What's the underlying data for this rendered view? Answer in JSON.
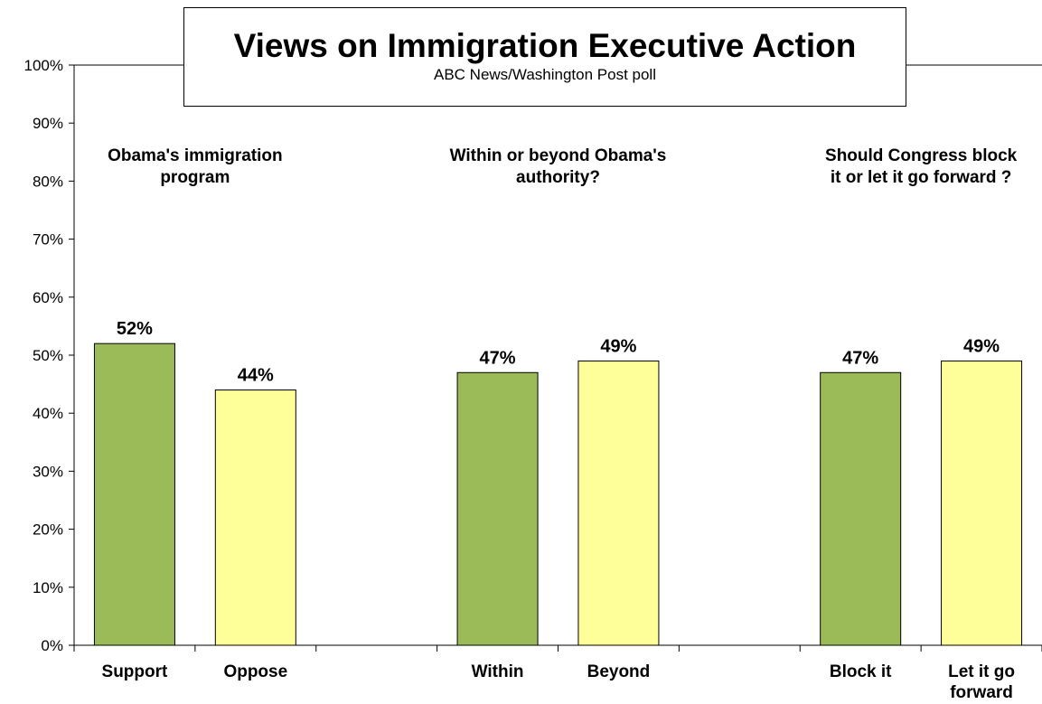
{
  "chart_data": {
    "type": "bar",
    "title": "Views on Immigration Executive Action",
    "subtitle": "ABC News/Washington  Post poll",
    "ylim": [
      0,
      100
    ],
    "yticks": [
      "0%",
      "10%",
      "20%",
      "30%",
      "40%",
      "50%",
      "60%",
      "70%",
      "80%",
      "90%",
      "100%"
    ],
    "grid": false,
    "colors": {
      "green": "#9bbb59",
      "yellow": "#ffff99"
    },
    "groups": [
      {
        "label_lines": [
          "Obama's immigration",
          "program"
        ]
      },
      {
        "label_lines": [
          "Within or beyond Obama's",
          "authority?"
        ]
      },
      {
        "label_lines": [
          "Should Congress block",
          "it or let it go forward ?"
        ]
      }
    ],
    "bars": [
      {
        "category_lines": [
          "Support"
        ],
        "value": 52,
        "label": "52%",
        "color": "green"
      },
      {
        "category_lines": [
          "Oppose"
        ],
        "value": 44,
        "label": "44%",
        "color": "yellow"
      },
      {
        "category_lines": [
          "Within"
        ],
        "value": 47,
        "label": "47%",
        "color": "green"
      },
      {
        "category_lines": [
          "Beyond"
        ],
        "value": 49,
        "label": "49%",
        "color": "yellow"
      },
      {
        "category_lines": [
          "Block it"
        ],
        "value": 47,
        "label": "47%",
        "color": "green"
      },
      {
        "category_lines": [
          "Let it go",
          "forward"
        ],
        "value": 49,
        "label": "49%",
        "color": "yellow"
      }
    ]
  }
}
